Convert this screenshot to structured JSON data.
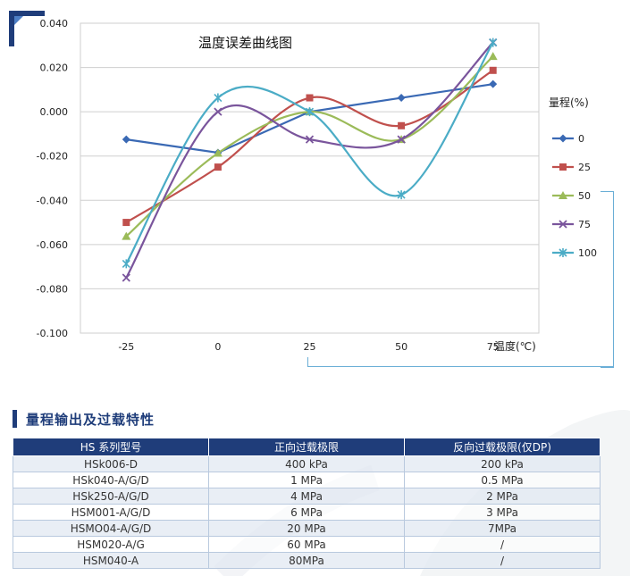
{
  "chart_data": {
    "type": "line",
    "title": "温度误差曲线图",
    "xlabel": "温度(℃)",
    "ylabel": "",
    "categories": [
      "-25",
      "0",
      "25",
      "50",
      "75"
    ],
    "ylim": [
      -0.1,
      0.04
    ],
    "yticks": [
      "0.040",
      "0.020",
      "0.000",
      "-0.020",
      "-0.040",
      "-0.060",
      "-0.080",
      "-0.100"
    ],
    "grid": true,
    "legend_title": "量程(%)",
    "legend_position": "right",
    "series": [
      {
        "name": "0",
        "color": "#3a69b4",
        "marker": "diamond",
        "values": [
          -0.0125,
          -0.0185,
          0.0,
          0.0063,
          0.0125
        ]
      },
      {
        "name": "25",
        "color": "#c0504d",
        "marker": "square",
        "values": [
          -0.05,
          -0.025,
          0.0063,
          -0.0063,
          0.0187
        ]
      },
      {
        "name": "50",
        "color": "#9bbb59",
        "marker": "triangle",
        "values": [
          -0.0563,
          -0.0187,
          0.0,
          -0.0125,
          0.025
        ]
      },
      {
        "name": "75",
        "color": "#7a559c",
        "marker": "x",
        "values": [
          -0.075,
          0.0,
          -0.0125,
          -0.0125,
          0.0313
        ]
      },
      {
        "name": "100",
        "color": "#4bacc6",
        "marker": "star",
        "values": [
          -0.0687,
          0.0063,
          0.0,
          -0.0375,
          0.0313
        ]
      }
    ]
  },
  "section": {
    "title": "量程输出及过载特性"
  },
  "table": {
    "headers": [
      "HS 系列型号",
      "正向过载极限",
      "反向过载极限(仅DP)"
    ],
    "rows": [
      [
        "HSk006-D",
        "400 kPa",
        "200 kPa"
      ],
      [
        "HSk040-A/G/D",
        "1 MPa",
        "0.5 MPa"
      ],
      [
        "HSk250-A/G/D",
        "4 MPa",
        "2 MPa"
      ],
      [
        "HSM001-A/G/D",
        "6 MPa",
        "3 MPa"
      ],
      [
        "HSMO04-A/G/D",
        "20 MPa",
        "7MPa"
      ],
      [
        "HSM020-A/G",
        "60 MPa",
        "/"
      ],
      [
        "HSM040-A",
        "80MPa",
        "/"
      ]
    ]
  }
}
